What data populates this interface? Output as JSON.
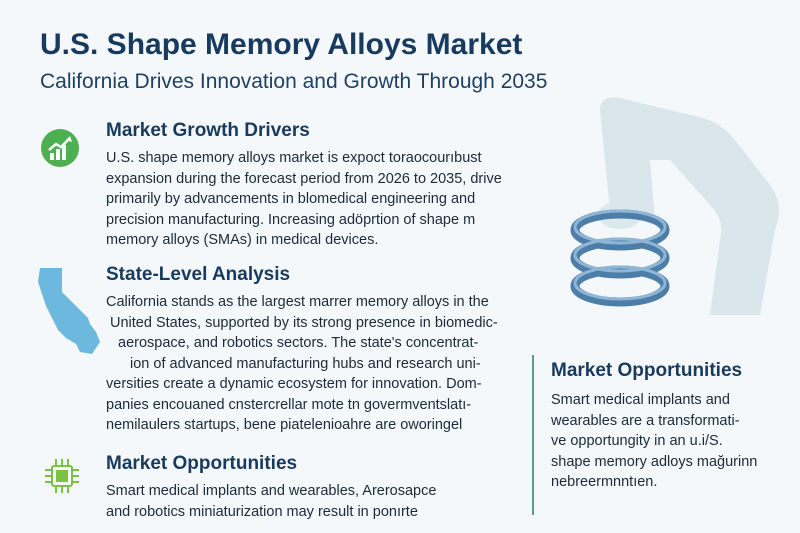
{
  "header": {
    "title": "U.S. Shape Memory Alloys Market",
    "subtitle": "California Drives Innovation and Growth Through 2035"
  },
  "sections": [
    {
      "heading": "Market Growth Drivers",
      "icon": "growth-chart-icon",
      "lines": [
        "U.S. shape memory alloys market is expoct toraocourıbust",
        "expansion during the forecast period from 2026 to 2035, drive",
        "primarily by advancements in blomedical engineering and",
        "precision manufacturing. Increasing adöprtion of shape m",
        "memory alloys (SMAs) in medical devices."
      ]
    },
    {
      "heading": "State-Level Analysis",
      "icon": "california-map-icon",
      "lines": [
        "California stands as the largest marrer memory alloys in the",
        "United States, supported by its strong presence in biomedic-",
        "aerospace, and robotics sectors. The state's concentrat-",
        "ion of advanced manufacturing hubs and research uni-",
        "versities create a dynamic ecosystem for innovation. Dom-",
        "panies encouaned cnstercrellar mote tn govermventslatı-",
        "nemilaulers  startups, bene piatelenioahre are oworingel"
      ]
    },
    {
      "heading": "Market Opportunities",
      "icon": "microchip-icon",
      "lines": [
        "Smart medical implants and wearables, Arerosapce",
        "and robotics miniaturization may result in ponırte"
      ]
    }
  ],
  "right_panel": {
    "heading": "Market Opportunities",
    "lines": [
      "Smart medical implants and",
      "wearables are a transformati-",
      "ve opportungity in an u.i/S.",
      "shape memory adloys mağurinn",
      "nebreermnntıen."
    ],
    "illustration": "robotic-arm-spring-icon"
  },
  "colors": {
    "title": "#173a5e",
    "growth_icon": "#4caf50",
    "map_icon": "#6db8df",
    "chip_icon": "#7cc242",
    "spring": "#4d7ea8",
    "divider": "#5a9a8a"
  }
}
